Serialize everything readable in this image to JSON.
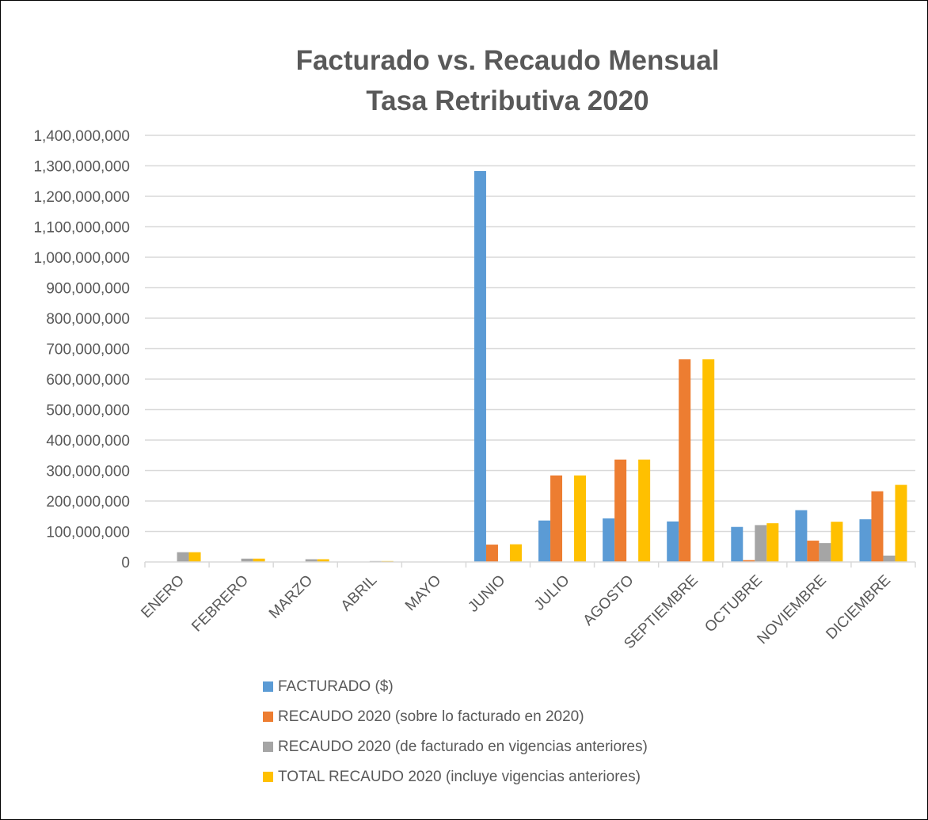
{
  "chart_data": {
    "type": "bar",
    "title": "Facturado vs. Recaudo Mensual",
    "subtitle": "Tasa Retributiva 2020",
    "xlabel": "",
    "ylabel": "",
    "ylim": [
      0,
      1400000000
    ],
    "y_ticks": [
      "0",
      "100,000,000",
      "200,000,000",
      "300,000,000",
      "400,000,000",
      "500,000,000",
      "600,000,000",
      "700,000,000",
      "800,000,000",
      "900,000,000",
      "1,000,000,000",
      "1,100,000,000",
      "1,200,000,000",
      "1,300,000,000",
      "1,400,000,000"
    ],
    "grid": true,
    "legend_position": "bottom",
    "categories": [
      "ENERO",
      "FEBRERO",
      "MARZO",
      "ABRIL",
      "MAYO",
      "JUNIO",
      "JULIO",
      "AGOSTO",
      "SEPTIEMBRE",
      "OCTUBRE",
      "NOVIEMBRE",
      "DICIEMBRE"
    ],
    "series": [
      {
        "name": "FACTURADO ($)",
        "color": "#5B9BD5",
        "values": [
          0,
          0,
          0,
          0,
          0,
          1283000000,
          136000000,
          143000000,
          133000000,
          115000000,
          170000000,
          140000000
        ]
      },
      {
        "name": "RECAUDO 2020 (sobre lo facturado en 2020)",
        "color": "#ED7D31",
        "values": [
          0,
          0,
          0,
          0,
          0,
          57000000,
          284000000,
          336000000,
          665000000,
          6000000,
          70000000,
          232000000
        ]
      },
      {
        "name": "RECAUDO 2020 (de facturado en vigencias anteriores)",
        "color": "#A5A5A5",
        "values": [
          32000000,
          11000000,
          9000000,
          3000000,
          0,
          0,
          0,
          0,
          0,
          121000000,
          62000000,
          21000000
        ]
      },
      {
        "name": "TOTAL RECAUDO 2020 (incluye vigencias anteriores)",
        "color": "#FFC000",
        "values": [
          32000000,
          11000000,
          9000000,
          3000000,
          0,
          58000000,
          284000000,
          336000000,
          665000000,
          127000000,
          132000000,
          253000000
        ]
      }
    ]
  }
}
